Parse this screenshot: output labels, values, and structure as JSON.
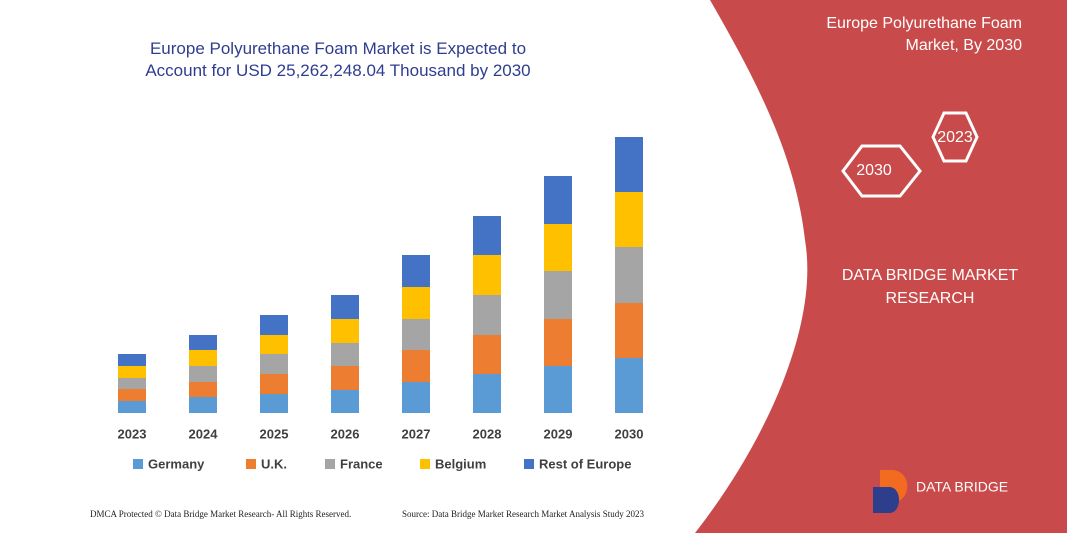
{
  "chart_data": {
    "type": "stacked-bar",
    "title": "Europe Polyurethane Foam Market is Expected to Account for USD 25,262,248.04 Thousand by 2030",
    "categories": [
      "2023",
      "2024",
      "2025",
      "2026",
      "2027",
      "2028",
      "2029",
      "2030"
    ],
    "series": [
      {
        "name": "Germany",
        "color": "#5b9bd5",
        "values": [
          12,
          16,
          19,
          23,
          31,
          39,
          47,
          55
        ]
      },
      {
        "name": "U.K.",
        "color": "#ed7d31",
        "values": [
          12,
          15,
          20,
          24,
          32,
          39,
          47,
          55
        ]
      },
      {
        "name": "France",
        "color": "#a5a5a5",
        "values": [
          11,
          16,
          20,
          23,
          31,
          40,
          48,
          56
        ]
      },
      {
        "name": "Belgium",
        "color": "#ffc000",
        "values": [
          12,
          16,
          19,
          24,
          32,
          40,
          47,
          55
        ]
      },
      {
        "name": "Rest of Europe",
        "color": "#4472c4",
        "values": [
          12,
          15,
          20,
          24,
          32,
          39,
          48,
          55
        ]
      }
    ],
    "ylim": [
      0,
      276
    ]
  },
  "panel": {
    "title": "Europe Polyurethane Foam Market, By 2030",
    "hexagons": [
      "2023",
      "2030"
    ],
    "brand": "DATA BRIDGE MARKET RESEARCH"
  },
  "logo": {
    "name": "DATA BRIDGE"
  },
  "footer": {
    "left": "DMCA Protected © Data Bridge Market Research- All Rights Reserved.",
    "right": "Source: Data Bridge Market Research Market Analysis Study 2023"
  }
}
